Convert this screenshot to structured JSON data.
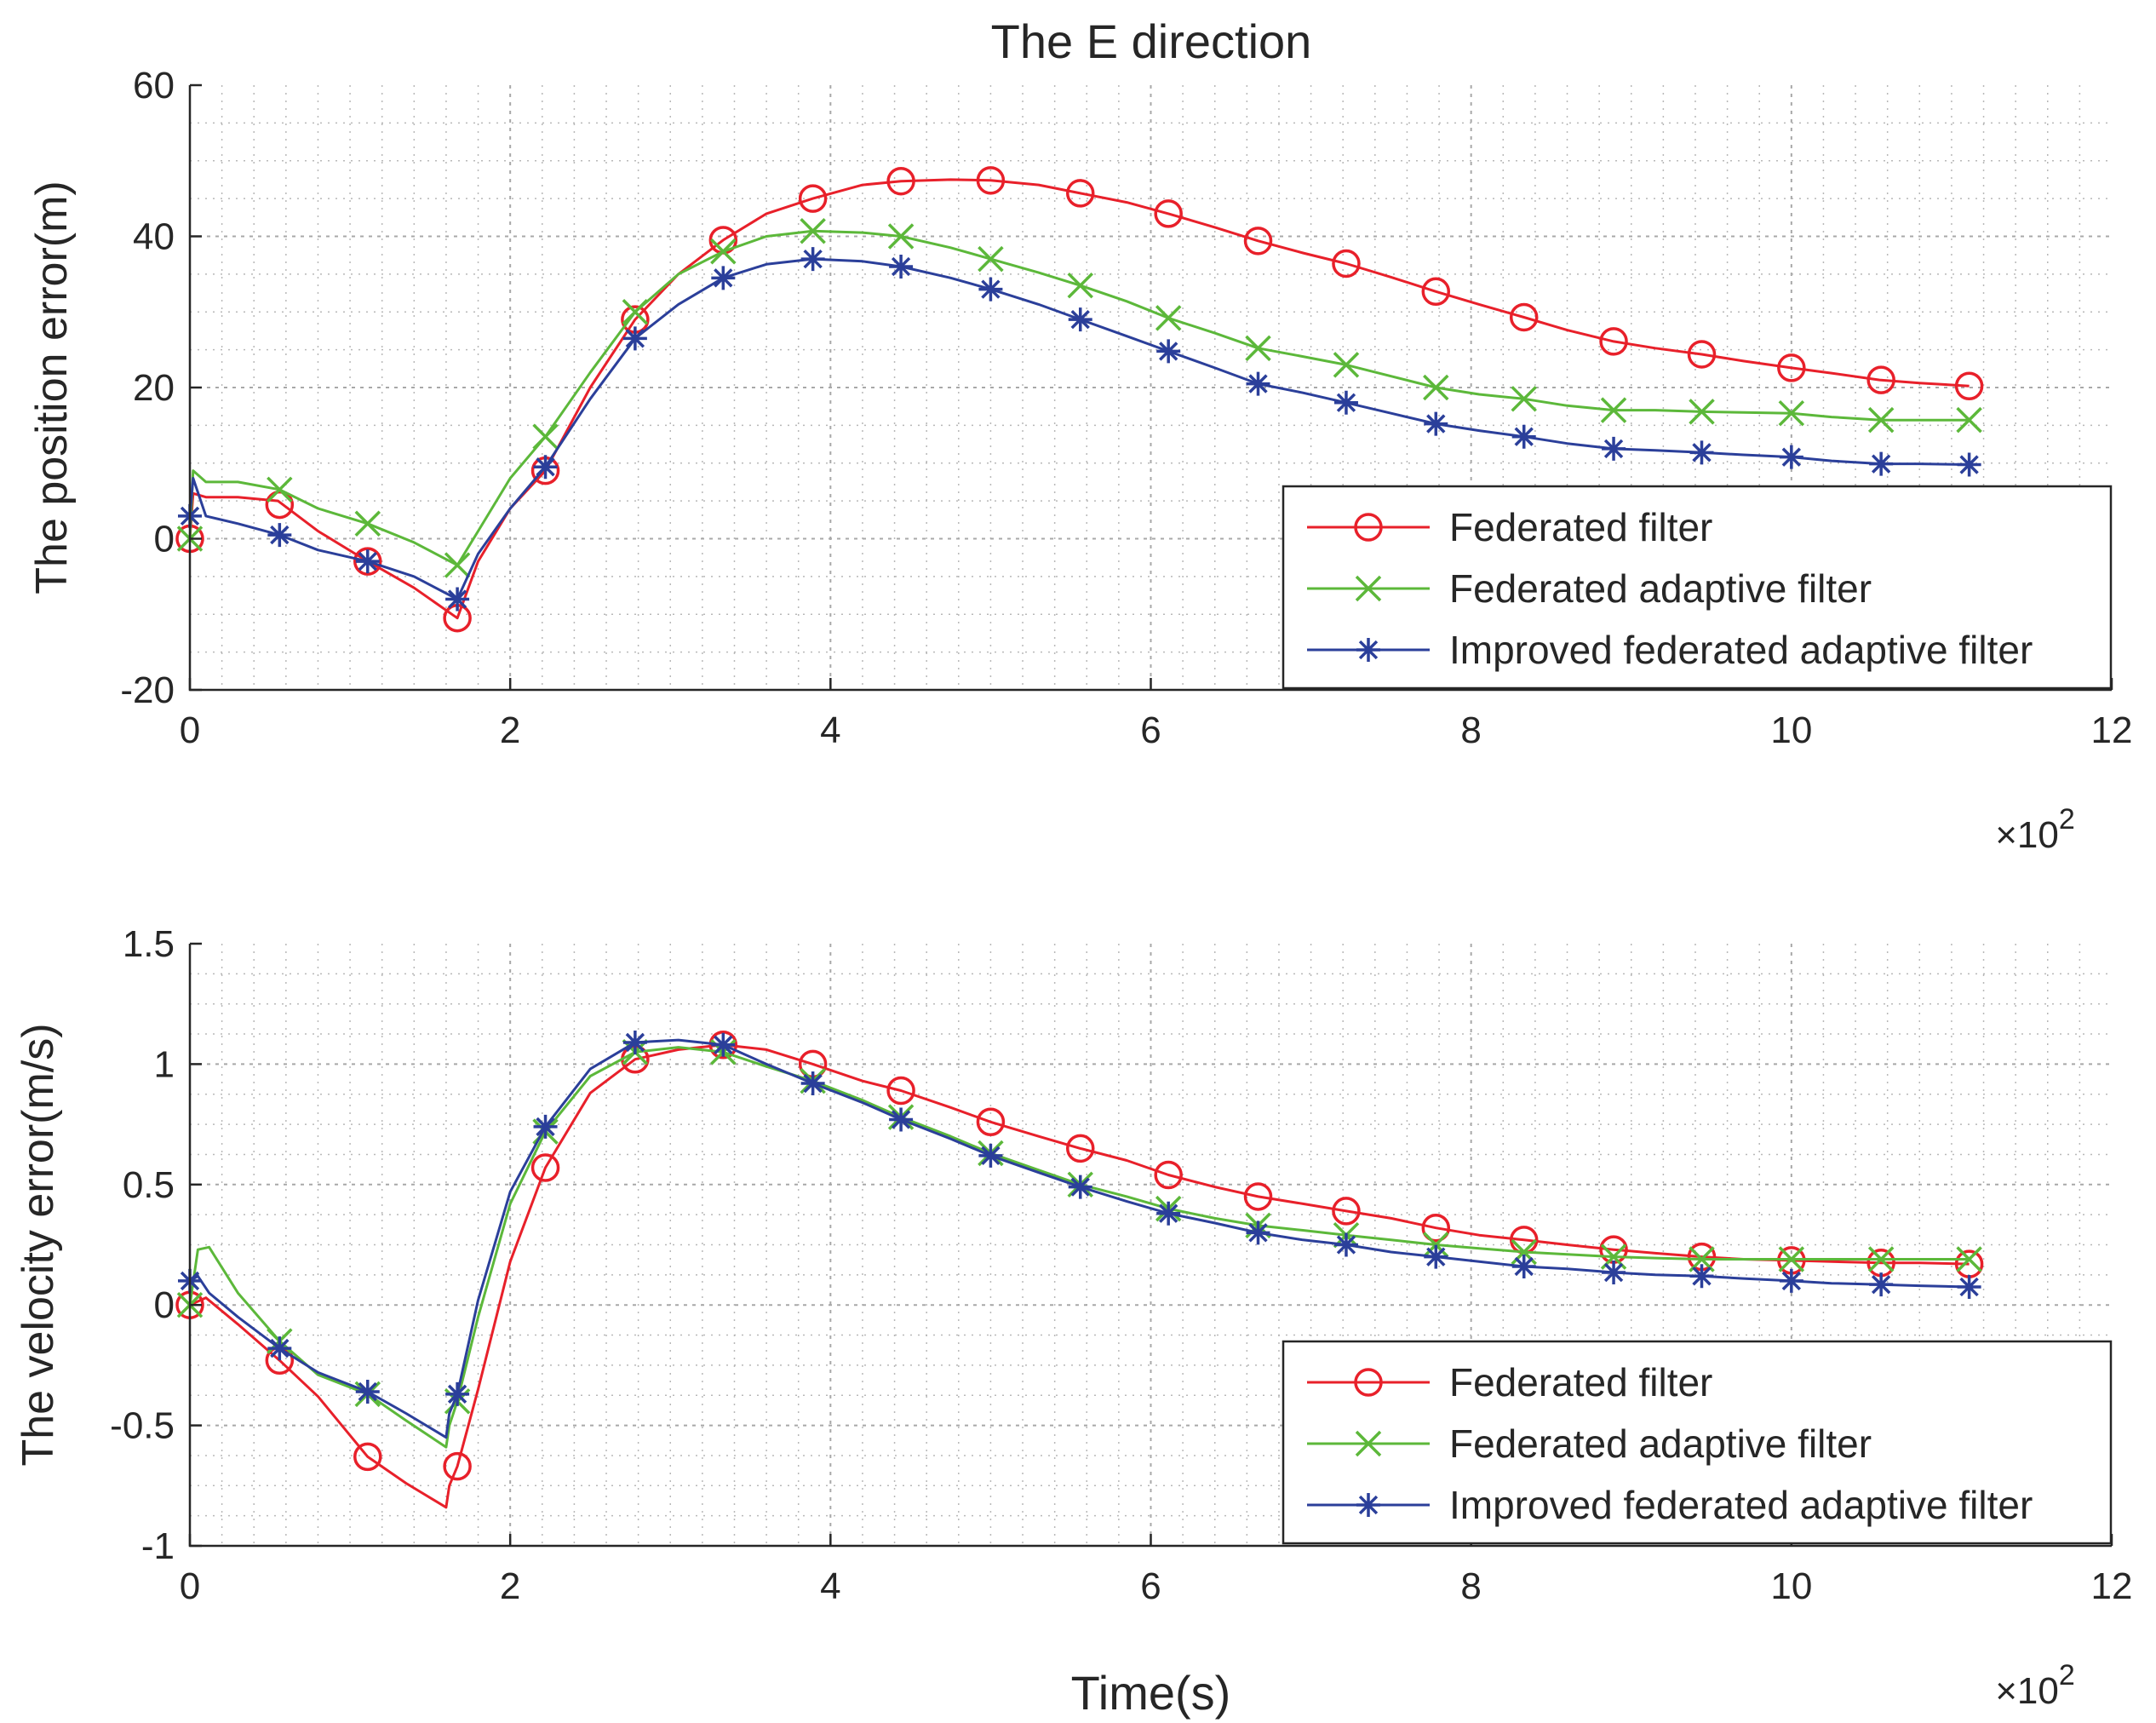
{
  "figure": {
    "title": "The E direction"
  },
  "colors": {
    "federated": "#e8202a",
    "adaptive": "#5cb83a",
    "improved": "#2b3f9a",
    "axis": "#262626",
    "grid": "#b8b8b8"
  },
  "chart_data": [
    {
      "type": "line",
      "title": "The E direction",
      "xlabel": "",
      "ylabel": "The position error(m)",
      "x_exponent_label": "×10",
      "x_exponent_power": "2",
      "xlim": [
        0,
        12
      ],
      "ylim": [
        -20,
        60
      ],
      "xticks": [
        0,
        2,
        4,
        6,
        8,
        10,
        12
      ],
      "xtick_labels": [
        "0",
        "2",
        "4",
        "6",
        "8",
        "10",
        "12"
      ],
      "yticks": [
        -20,
        0,
        20,
        40,
        60
      ],
      "ytick_labels": [
        "-20",
        "0",
        "20",
        "40",
        "60"
      ],
      "grid": true,
      "legend_position": "bottom-right",
      "series": [
        {
          "name": "Federated filter",
          "marker": "circle",
          "color_key": "federated",
          "x": [
            0,
            0.02,
            0.1,
            0.3,
            0.55,
            0.8,
            1.11,
            1.4,
            1.67,
            1.8,
            2.0,
            2.22,
            2.5,
            2.78,
            3.05,
            3.33,
            3.6,
            3.89,
            4.2,
            4.44,
            4.75,
            5.0,
            5.3,
            5.56,
            5.85,
            6.11,
            6.4,
            6.67,
            6.95,
            7.22,
            7.5,
            7.78,
            8.05,
            8.33,
            8.6,
            8.89,
            9.15,
            9.44,
            9.7,
            10.0,
            10.25,
            10.55,
            10.8,
            11.11
          ],
          "y": [
            0,
            6,
            5.5,
            5.5,
            5,
            1,
            -3,
            -6.5,
            -10.5,
            -3,
            4,
            9,
            20,
            29,
            35,
            39.5,
            43,
            45,
            46.8,
            47.3,
            47.5,
            47.4,
            46.8,
            45.7,
            44.5,
            43,
            41.2,
            39.4,
            37.8,
            36.4,
            34.6,
            32.7,
            31,
            29.3,
            27.6,
            26.1,
            25.2,
            24.4,
            23.5,
            22.6,
            21.9,
            21,
            20.6,
            20.2
          ],
          "marker_x": [
            0,
            0.56,
            1.11,
            1.67,
            2.22,
            2.78,
            3.33,
            3.89,
            4.44,
            5.0,
            5.56,
            6.11,
            6.67,
            7.22,
            7.78,
            8.33,
            8.89,
            9.44,
            10.0,
            10.56,
            11.11
          ],
          "marker_y": [
            0,
            4.5,
            -3,
            -10.5,
            9,
            29,
            39.5,
            45,
            47.3,
            47.4,
            45.7,
            43,
            39.4,
            36.4,
            32.7,
            29.3,
            26.1,
            24.4,
            22.6,
            21,
            20.2
          ]
        },
        {
          "name": "Federated adaptive filter",
          "marker": "x",
          "color_key": "adaptive",
          "x": [
            0,
            0.02,
            0.1,
            0.3,
            0.56,
            0.8,
            1.11,
            1.4,
            1.67,
            1.8,
            2.0,
            2.22,
            2.5,
            2.78,
            3.05,
            3.33,
            3.6,
            3.89,
            4.2,
            4.44,
            4.75,
            5.0,
            5.3,
            5.56,
            5.85,
            6.11,
            6.4,
            6.67,
            6.95,
            7.22,
            7.5,
            7.78,
            8.05,
            8.33,
            8.6,
            8.89,
            9.15,
            9.44,
            9.7,
            10.0,
            10.25,
            10.56,
            10.8,
            11.11
          ],
          "y": [
            0,
            9,
            7.5,
            7.5,
            6.5,
            4,
            2,
            -0.5,
            -3.5,
            1,
            8,
            13.5,
            22,
            30,
            35,
            38,
            40,
            40.7,
            40.5,
            40,
            38.5,
            37,
            35.2,
            33.5,
            31.4,
            29.2,
            27.2,
            25.2,
            24.1,
            23,
            21.5,
            20,
            19.1,
            18.5,
            17.6,
            17,
            17,
            16.8,
            16.7,
            16.6,
            16.1,
            15.7,
            15.7,
            15.7
          ],
          "marker_x": [
            0,
            0.56,
            1.11,
            1.67,
            2.22,
            2.78,
            3.33,
            3.89,
            4.44,
            5.0,
            5.56,
            6.11,
            6.67,
            7.22,
            7.78,
            8.33,
            8.89,
            9.44,
            10.0,
            10.56,
            11.11
          ],
          "marker_y": [
            0,
            6.5,
            2,
            -3.5,
            13.5,
            30,
            38,
            40.7,
            40,
            37,
            33.5,
            29.2,
            25.2,
            23,
            20,
            18.5,
            17,
            16.8,
            16.6,
            15.7,
            15.7
          ]
        },
        {
          "name": "Improved federated adaptive filter",
          "marker": "asterisk",
          "color_key": "improved",
          "x": [
            0,
            0.02,
            0.1,
            0.3,
            0.56,
            0.8,
            1.11,
            1.4,
            1.67,
            1.8,
            2.0,
            2.22,
            2.5,
            2.78,
            3.05,
            3.33,
            3.6,
            3.89,
            4.2,
            4.44,
            4.75,
            5.0,
            5.3,
            5.56,
            5.85,
            6.11,
            6.4,
            6.67,
            6.95,
            7.22,
            7.5,
            7.78,
            8.05,
            8.33,
            8.6,
            8.89,
            9.15,
            9.44,
            9.7,
            10.0,
            10.25,
            10.56,
            10.8,
            11.11
          ],
          "y": [
            3,
            8,
            3,
            2,
            0.5,
            -1.5,
            -3,
            -5,
            -8,
            -2,
            4,
            9.5,
            18.5,
            26.5,
            31,
            34.5,
            36.3,
            37,
            36.7,
            36,
            34.5,
            33,
            31,
            29,
            26.8,
            24.8,
            22.6,
            20.5,
            19.3,
            18,
            16.6,
            15.2,
            14.3,
            13.5,
            12.6,
            11.9,
            11.7,
            11.4,
            11.1,
            10.8,
            10.3,
            9.9,
            9.9,
            9.8
          ],
          "marker_x": [
            0,
            0.56,
            1.11,
            1.67,
            2.22,
            2.78,
            3.33,
            3.89,
            4.44,
            5.0,
            5.56,
            6.11,
            6.67,
            7.22,
            7.78,
            8.33,
            8.89,
            9.44,
            10.0,
            10.56,
            11.11
          ],
          "marker_y": [
            3,
            0.5,
            -3,
            -8,
            9.5,
            26.5,
            34.5,
            37,
            36,
            33,
            29,
            24.8,
            20.5,
            18,
            15.2,
            13.5,
            11.9,
            11.4,
            10.8,
            9.9,
            9.8
          ]
        }
      ]
    },
    {
      "type": "line",
      "title": "",
      "xlabel": "Time(s)",
      "ylabel": "The velocity error(m/s)",
      "x_exponent_label": "×10",
      "x_exponent_power": "2",
      "xlim": [
        0,
        12
      ],
      "ylim": [
        -1,
        1.5
      ],
      "xticks": [
        0,
        2,
        4,
        6,
        8,
        10,
        12
      ],
      "xtick_labels": [
        "0",
        "2",
        "4",
        "6",
        "8",
        "10",
        "12"
      ],
      "yticks": [
        -1,
        -0.5,
        0,
        0.5,
        1,
        1.5
      ],
      "ytick_labels": [
        "-1",
        "-0.5",
        "0",
        "0.5",
        "1",
        "1.5"
      ],
      "grid": true,
      "legend_position": "bottom-right",
      "series": [
        {
          "name": "Federated filter",
          "marker": "circle",
          "color_key": "federated",
          "x": [
            0,
            0.1,
            0.3,
            0.56,
            0.8,
            1.11,
            1.35,
            1.6,
            1.62,
            1.67,
            1.8,
            2.0,
            2.22,
            2.5,
            2.78,
            3.05,
            3.33,
            3.6,
            3.89,
            4.2,
            4.44,
            4.75,
            5.0,
            5.3,
            5.56,
            5.85,
            6.11,
            6.4,
            6.67,
            6.95,
            7.22,
            7.5,
            7.78,
            8.05,
            8.33,
            8.6,
            8.89,
            9.15,
            9.44,
            9.7,
            10.0,
            10.25,
            10.56,
            10.8,
            11.11
          ],
          "y": [
            0,
            0.03,
            -0.08,
            -0.23,
            -0.38,
            -0.63,
            -0.74,
            -0.84,
            -0.75,
            -0.67,
            -0.35,
            0.18,
            0.57,
            0.88,
            1.02,
            1.06,
            1.08,
            1.06,
            1.0,
            0.93,
            0.89,
            0.82,
            0.76,
            0.7,
            0.65,
            0.6,
            0.54,
            0.49,
            0.45,
            0.42,
            0.39,
            0.36,
            0.32,
            0.29,
            0.27,
            0.25,
            0.23,
            0.215,
            0.2,
            0.19,
            0.185,
            0.18,
            0.175,
            0.175,
            0.17
          ],
          "marker_x": [
            0,
            0.56,
            1.11,
            1.67,
            2.22,
            2.78,
            3.33,
            3.89,
            4.44,
            5.0,
            5.56,
            6.11,
            6.67,
            7.22,
            7.78,
            8.33,
            8.89,
            9.44,
            10.0,
            10.56,
            11.11
          ],
          "marker_y": [
            0,
            -0.23,
            -0.63,
            -0.67,
            0.57,
            1.02,
            1.08,
            1.0,
            0.89,
            0.76,
            0.65,
            0.54,
            0.45,
            0.39,
            0.32,
            0.27,
            0.23,
            0.2,
            0.185,
            0.175,
            0.17
          ]
        },
        {
          "name": "Federated adaptive filter",
          "marker": "x",
          "color_key": "adaptive",
          "x": [
            0,
            0.05,
            0.12,
            0.3,
            0.56,
            0.8,
            1.11,
            1.35,
            1.6,
            1.62,
            1.67,
            1.8,
            2.0,
            2.22,
            2.5,
            2.78,
            3.05,
            3.33,
            3.6,
            3.89,
            4.2,
            4.44,
            4.75,
            5.0,
            5.3,
            5.56,
            5.85,
            6.11,
            6.4,
            6.67,
            6.95,
            7.22,
            7.5,
            7.78,
            8.05,
            8.33,
            8.6,
            8.89,
            9.15,
            9.44,
            9.7,
            10.0,
            10.25,
            10.56,
            10.8,
            11.11
          ],
          "y": [
            0,
            0.23,
            0.24,
            0.05,
            -0.15,
            -0.29,
            -0.37,
            -0.48,
            -0.59,
            -0.5,
            -0.4,
            -0.05,
            0.42,
            0.72,
            0.95,
            1.05,
            1.07,
            1.05,
            0.99,
            0.93,
            0.85,
            0.78,
            0.7,
            0.63,
            0.56,
            0.5,
            0.45,
            0.4,
            0.36,
            0.33,
            0.31,
            0.29,
            0.27,
            0.25,
            0.235,
            0.22,
            0.21,
            0.2,
            0.195,
            0.19,
            0.19,
            0.19,
            0.19,
            0.19,
            0.19,
            0.19
          ],
          "marker_x": [
            0,
            0.56,
            1.11,
            1.67,
            2.22,
            2.78,
            3.33,
            3.89,
            4.44,
            5.0,
            5.56,
            6.11,
            6.67,
            7.22,
            7.78,
            8.33,
            8.89,
            9.44,
            10.0,
            10.56,
            11.11
          ],
          "marker_y": [
            0,
            -0.15,
            -0.37,
            -0.4,
            0.72,
            1.05,
            1.05,
            0.93,
            0.78,
            0.63,
            0.5,
            0.4,
            0.33,
            0.29,
            0.25,
            0.22,
            0.2,
            0.19,
            0.19,
            0.19,
            0.19
          ]
        },
        {
          "name": "Improved federated adaptive filter",
          "marker": "asterisk",
          "color_key": "improved",
          "x": [
            0,
            0.05,
            0.12,
            0.3,
            0.56,
            0.8,
            1.11,
            1.35,
            1.6,
            1.62,
            1.67,
            1.8,
            2.0,
            2.22,
            2.5,
            2.78,
            3.05,
            3.33,
            3.6,
            3.89,
            4.2,
            4.44,
            4.75,
            5.0,
            5.3,
            5.56,
            5.85,
            6.11,
            6.4,
            6.67,
            6.95,
            7.22,
            7.5,
            7.78,
            8.05,
            8.33,
            8.6,
            8.89,
            9.15,
            9.44,
            9.7,
            10.0,
            10.25,
            10.56,
            10.8,
            11.11
          ],
          "y": [
            0.1,
            0.12,
            0.05,
            -0.05,
            -0.18,
            -0.28,
            -0.36,
            -0.45,
            -0.55,
            -0.45,
            -0.37,
            0.02,
            0.47,
            0.74,
            0.98,
            1.09,
            1.1,
            1.08,
            1.0,
            0.92,
            0.84,
            0.77,
            0.69,
            0.62,
            0.55,
            0.49,
            0.43,
            0.38,
            0.34,
            0.3,
            0.27,
            0.25,
            0.22,
            0.2,
            0.18,
            0.16,
            0.15,
            0.135,
            0.125,
            0.12,
            0.11,
            0.1,
            0.09,
            0.085,
            0.08,
            0.075
          ],
          "marker_x": [
            0,
            0.56,
            1.11,
            1.67,
            2.22,
            2.78,
            3.33,
            3.89,
            4.44,
            5.0,
            5.56,
            6.11,
            6.67,
            7.22,
            7.78,
            8.33,
            8.89,
            9.44,
            10.0,
            10.56,
            11.11
          ],
          "marker_y": [
            0.1,
            -0.18,
            -0.36,
            -0.37,
            0.74,
            1.09,
            1.08,
            0.92,
            0.77,
            0.62,
            0.49,
            0.38,
            0.3,
            0.25,
            0.2,
            0.16,
            0.135,
            0.12,
            0.1,
            0.085,
            0.075
          ]
        }
      ]
    }
  ]
}
